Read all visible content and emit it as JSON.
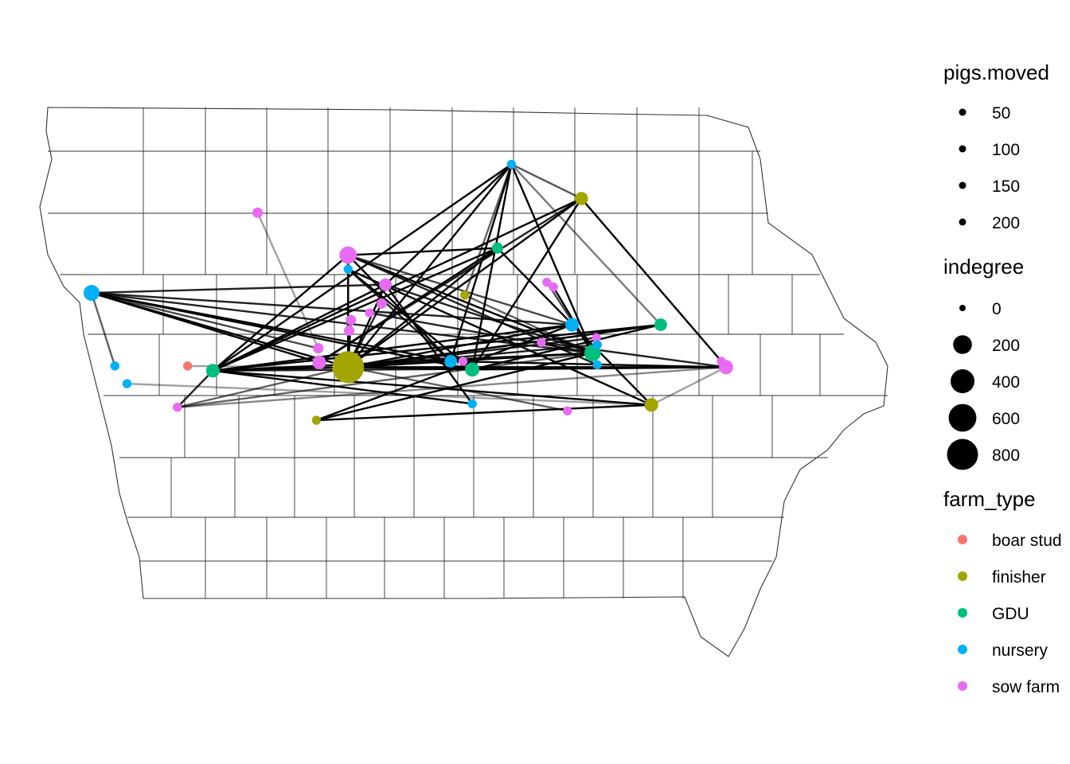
{
  "colors": {
    "boar stud": "#F8766D",
    "finisher": "#A3A500",
    "GDU": "#00BF7D",
    "nursery": "#00B0F6",
    "sow farm": "#E76BF3"
  },
  "legend": {
    "pigs_moved": {
      "title": "pigs.moved",
      "items": [
        "50",
        "100",
        "150",
        "200"
      ]
    },
    "indegree": {
      "title": "indegree",
      "items": [
        {
          "label": "0",
          "value": 0
        },
        {
          "label": "200",
          "value": 200
        },
        {
          "label": "400",
          "value": 400
        },
        {
          "label": "600",
          "value": 600
        },
        {
          "label": "800",
          "value": 800
        }
      ]
    },
    "farm_type": {
      "title": "farm_type",
      "items": [
        "boar stud",
        "finisher",
        "GDU",
        "nursery",
        "sow farm"
      ]
    }
  },
  "map": {
    "region": "Iowa",
    "layer": "county boundaries",
    "farms": [
      {
        "id": "f1",
        "type": "finisher",
        "indegree": 850,
        "lon": -93.55,
        "lat": 41.62
      },
      {
        "id": "f2",
        "type": "sow farm",
        "indegree": 160,
        "lon": -93.55,
        "lat": 42.57
      },
      {
        "id": "f3",
        "type": "nursery",
        "indegree": 120,
        "lon": -96.3,
        "lat": 42.25
      },
      {
        "id": "f4",
        "type": "GDU",
        "indegree": 140,
        "lon": -90.93,
        "lat": 41.74
      },
      {
        "id": "f5",
        "type": "finisher",
        "indegree": 60,
        "lon": -91.05,
        "lat": 43.05
      },
      {
        "id": "f6",
        "type": "nursery",
        "indegree": 10,
        "lon": -91.8,
        "lat": 43.34
      },
      {
        "id": "f7",
        "type": "GDU",
        "indegree": 30,
        "lon": -91.95,
        "lat": 42.63
      },
      {
        "id": "f8",
        "type": "nursery",
        "indegree": 70,
        "lon": -91.15,
        "lat": 41.98
      },
      {
        "id": "f9",
        "type": "GDU",
        "indegree": 50,
        "lon": -90.2,
        "lat": 41.98
      },
      {
        "id": "f10",
        "type": "nursery",
        "indegree": 50,
        "lon": -92.45,
        "lat": 41.67
      },
      {
        "id": "f11",
        "type": "sow farm",
        "indegree": 80,
        "lon": -89.5,
        "lat": 41.62
      },
      {
        "id": "f12",
        "type": "GDU",
        "indegree": 80,
        "lon": -92.22,
        "lat": 41.6
      },
      {
        "id": "f13",
        "type": "GDU",
        "indegree": 70,
        "lon": -95.0,
        "lat": 41.59
      },
      {
        "id": "f14",
        "type": "finisher",
        "indegree": 70,
        "lon": -90.3,
        "lat": 41.3
      },
      {
        "id": "f15",
        "type": "sow farm",
        "indegree": 70,
        "lon": -93.86,
        "lat": 41.66
      },
      {
        "id": "f16",
        "type": "sow farm",
        "indegree": 50,
        "lon": -93.15,
        "lat": 42.32
      },
      {
        "id": "f17",
        "type": "sow farm",
        "indegree": 20,
        "lon": -94.52,
        "lat": 42.93
      },
      {
        "id": "f18",
        "type": "nursery",
        "indegree": 10,
        "lon": -93.55,
        "lat": 42.45
      },
      {
        "id": "f19",
        "type": "sow farm",
        "indegree": 20,
        "lon": -93.19,
        "lat": 42.16
      },
      {
        "id": "f20",
        "type": "sow farm",
        "indegree": 20,
        "lon": -93.52,
        "lat": 42.02
      },
      {
        "id": "f21",
        "type": "sow farm",
        "indegree": 20,
        "lon": -93.54,
        "lat": 41.93
      },
      {
        "id": "f22",
        "type": "sow farm",
        "indegree": 20,
        "lon": -93.87,
        "lat": 41.78
      },
      {
        "id": "f23",
        "type": "sow farm",
        "indegree": 10,
        "lon": -91.42,
        "lat": 42.34
      },
      {
        "id": "f24",
        "type": "finisher",
        "indegree": 10,
        "lon": -92.3,
        "lat": 42.23
      },
      {
        "id": "f25",
        "type": "sow farm",
        "indegree": 10,
        "lon": -91.48,
        "lat": 41.83
      },
      {
        "id": "f26",
        "type": "sow farm",
        "indegree": 10,
        "lon": -92.32,
        "lat": 41.67
      },
      {
        "id": "f27",
        "type": "sow farm",
        "indegree": 10,
        "lon": -90.89,
        "lat": 41.87
      },
      {
        "id": "f28",
        "type": "nursery",
        "indegree": 10,
        "lon": -90.88,
        "lat": 41.81
      },
      {
        "id": "f29",
        "type": "nursery",
        "indegree": 10,
        "lon": -90.88,
        "lat": 41.64
      },
      {
        "id": "f30",
        "type": "sow farm",
        "indegree": 10,
        "lon": -89.55,
        "lat": 41.67
      },
      {
        "id": "f31",
        "type": "nursery",
        "indegree": 10,
        "lon": -96.05,
        "lat": 41.63
      },
      {
        "id": "f32",
        "type": "boar stud",
        "indegree": 10,
        "lon": -95.27,
        "lat": 41.63
      },
      {
        "id": "f33",
        "type": "nursery",
        "indegree": 10,
        "lon": -95.92,
        "lat": 41.48
      },
      {
        "id": "f34",
        "type": "sow farm",
        "indegree": 10,
        "lon": -95.38,
        "lat": 41.28
      },
      {
        "id": "f35",
        "type": "finisher",
        "indegree": 10,
        "lon": -93.89,
        "lat": 41.17
      },
      {
        "id": "f36",
        "type": "nursery",
        "indegree": 10,
        "lon": -92.22,
        "lat": 41.31
      },
      {
        "id": "f37",
        "type": "sow farm",
        "indegree": 10,
        "lon": -91.2,
        "lat": 41.25
      },
      {
        "id": "f38",
        "type": "sow farm",
        "indegree": 10,
        "lon": -91.35,
        "lat": 42.3
      },
      {
        "id": "f39",
        "type": "sow farm",
        "indegree": 10,
        "lon": -93.32,
        "lat": 42.08
      }
    ],
    "movements": [
      {
        "from": "f3",
        "to": "f1",
        "pigs_moved": 200
      },
      {
        "from": "f3",
        "to": "f15",
        "pigs_moved": 200
      },
      {
        "from": "f3",
        "to": "f4",
        "pigs_moved": 150
      },
      {
        "from": "f3",
        "to": "f12",
        "pigs_moved": 200
      },
      {
        "from": "f3",
        "to": "f8",
        "pigs_moved": 150
      },
      {
        "from": "f3",
        "to": "f10",
        "pigs_moved": 200
      },
      {
        "from": "f3",
        "to": "f16",
        "pigs_moved": 150
      },
      {
        "from": "f3",
        "to": "f31",
        "pigs_moved": 100
      },
      {
        "from": "f3",
        "to": "f22",
        "pigs_moved": 120
      },
      {
        "from": "f6",
        "to": "f1",
        "pigs_moved": 200
      },
      {
        "from": "f6",
        "to": "f13",
        "pigs_moved": 200
      },
      {
        "from": "f6",
        "to": "f4",
        "pigs_moved": 200
      },
      {
        "from": "f6",
        "to": "f12",
        "pigs_moved": 200
      },
      {
        "from": "f6",
        "to": "f16",
        "pigs_moved": 200
      },
      {
        "from": "f6",
        "to": "f10",
        "pigs_moved": 200
      },
      {
        "from": "f6",
        "to": "f5",
        "pigs_moved": 60
      },
      {
        "from": "f5",
        "to": "f1",
        "pigs_moved": 200
      },
      {
        "from": "f5",
        "to": "f13",
        "pigs_moved": 200
      },
      {
        "from": "f5",
        "to": "f30",
        "pigs_moved": 200
      },
      {
        "from": "f5",
        "to": "f15",
        "pigs_moved": 150
      },
      {
        "from": "f5",
        "to": "f12",
        "pigs_moved": 200
      },
      {
        "from": "f2",
        "to": "f1",
        "pigs_moved": 200
      },
      {
        "from": "f2",
        "to": "f7",
        "pigs_moved": 200
      },
      {
        "from": "f2",
        "to": "f4",
        "pigs_moved": 200
      },
      {
        "from": "f2",
        "to": "f10",
        "pigs_moved": 200
      },
      {
        "from": "f2",
        "to": "f8",
        "pigs_moved": 120
      },
      {
        "from": "f2",
        "to": "f29",
        "pigs_moved": 150
      },
      {
        "from": "f2",
        "to": "f13",
        "pigs_moved": 200
      },
      {
        "from": "f7",
        "to": "f1",
        "pigs_moved": 200
      },
      {
        "from": "f7",
        "to": "f14",
        "pigs_moved": 200
      },
      {
        "from": "f7",
        "to": "f13",
        "pigs_moved": 200
      },
      {
        "from": "f7",
        "to": "f15",
        "pigs_moved": 200
      },
      {
        "from": "f18",
        "to": "f1",
        "pigs_moved": 200
      },
      {
        "from": "f18",
        "to": "f14",
        "pigs_moved": 200
      },
      {
        "from": "f18",
        "to": "f12",
        "pigs_moved": 200
      },
      {
        "from": "f18",
        "to": "f10",
        "pigs_moved": 150
      },
      {
        "from": "f16",
        "to": "f1",
        "pigs_moved": 200
      },
      {
        "from": "f16",
        "to": "f13",
        "pigs_moved": 200
      },
      {
        "from": "f16",
        "to": "f4",
        "pigs_moved": 150
      },
      {
        "from": "f16",
        "to": "f36",
        "pigs_moved": 200
      },
      {
        "from": "f9",
        "to": "f1",
        "pigs_moved": 200
      },
      {
        "from": "f9",
        "to": "f13",
        "pigs_moved": 200
      },
      {
        "from": "f9",
        "to": "f12",
        "pigs_moved": 200
      },
      {
        "from": "f8",
        "to": "f1",
        "pigs_moved": 200
      },
      {
        "from": "f8",
        "to": "f13",
        "pigs_moved": 200
      },
      {
        "from": "f8",
        "to": "f35",
        "pigs_moved": 200
      },
      {
        "from": "f4",
        "to": "f1",
        "pigs_moved": 200
      },
      {
        "from": "f4",
        "to": "f13",
        "pigs_moved": 200
      },
      {
        "from": "f4",
        "to": "f34",
        "pigs_moved": 100
      },
      {
        "from": "f4",
        "to": "f35",
        "pigs_moved": 200
      },
      {
        "from": "f12",
        "to": "f1",
        "pigs_moved": 200
      },
      {
        "from": "f12",
        "to": "f11",
        "pigs_moved": 200
      },
      {
        "from": "f10",
        "to": "f1",
        "pigs_moved": 200
      },
      {
        "from": "f10",
        "to": "f11",
        "pigs_moved": 200
      },
      {
        "from": "f1",
        "to": "f11",
        "pigs_moved": 200
      },
      {
        "from": "f1",
        "to": "f9",
        "pigs_moved": 150
      },
      {
        "from": "f1",
        "to": "f37",
        "pigs_moved": 100
      },
      {
        "from": "f13",
        "to": "f14",
        "pigs_moved": 200
      },
      {
        "from": "f13",
        "to": "f36",
        "pigs_moved": 200
      },
      {
        "from": "f13",
        "to": "f11",
        "pigs_moved": 150
      },
      {
        "from": "f13",
        "to": "f1",
        "pigs_moved": 200
      },
      {
        "from": "f34",
        "to": "f1",
        "pigs_moved": 100
      },
      {
        "from": "f34",
        "to": "f13",
        "pigs_moved": 150
      },
      {
        "from": "f34",
        "to": "f11",
        "pigs_moved": 70
      },
      {
        "from": "f35",
        "to": "f14",
        "pigs_moved": 200
      },
      {
        "from": "f33",
        "to": "f14",
        "pigs_moved": 50
      },
      {
        "from": "f17",
        "to": "f22",
        "pigs_moved": 50
      },
      {
        "from": "f14",
        "to": "f11",
        "pigs_moved": 50
      },
      {
        "from": "f32",
        "to": "f1",
        "pigs_moved": 50
      },
      {
        "from": "f23",
        "to": "f4",
        "pigs_moved": 120
      },
      {
        "from": "f20",
        "to": "f1",
        "pigs_moved": 150
      },
      {
        "from": "f21",
        "to": "f1",
        "pigs_moved": 200
      },
      {
        "from": "f19",
        "to": "f1",
        "pigs_moved": 150
      },
      {
        "from": "f39",
        "to": "f4",
        "pigs_moved": 150
      },
      {
        "from": "f38",
        "to": "f4",
        "pigs_moved": 200
      },
      {
        "from": "f28",
        "to": "f1",
        "pigs_moved": 150
      },
      {
        "from": "f27",
        "to": "f1",
        "pigs_moved": 150
      },
      {
        "from": "f25",
        "to": "f11",
        "pigs_moved": 150
      },
      {
        "from": "f6",
        "to": "f24",
        "pigs_moved": 100
      },
      {
        "from": "f24",
        "to": "f4",
        "pigs_moved": 100
      },
      {
        "from": "f6",
        "to": "f9",
        "pigs_moved": 80
      },
      {
        "from": "f5",
        "to": "f6",
        "pigs_moved": 60
      }
    ]
  }
}
